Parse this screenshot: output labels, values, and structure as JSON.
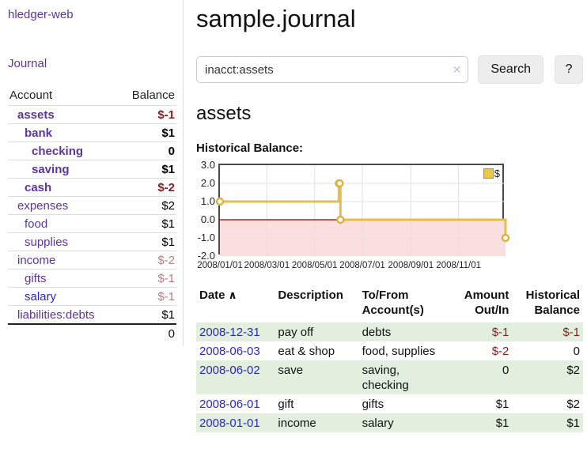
{
  "app": {
    "brand": "hledger-web",
    "nav_journal": "Journal"
  },
  "sidebar": {
    "columns": {
      "account": "Account",
      "balance": "Balance"
    },
    "accounts": [
      {
        "label": "assets",
        "indent": 1,
        "bold": true,
        "link": "purple",
        "balance": "$-1",
        "balance_neg": "strong"
      },
      {
        "label": "bank",
        "indent": 2,
        "bold": true,
        "link": "purple",
        "balance": "$1",
        "balance_neg": "none"
      },
      {
        "label": "checking",
        "indent": 3,
        "bold": true,
        "link": "purple",
        "balance": "0",
        "balance_neg": "none"
      },
      {
        "label": "saving",
        "indent": 3,
        "bold": true,
        "link": "purple",
        "balance": "$1",
        "balance_neg": "none"
      },
      {
        "label": "cash",
        "indent": 2,
        "bold": true,
        "link": "purple",
        "balance": "$-2",
        "balance_neg": "strong"
      },
      {
        "label": "expenses",
        "indent": 1,
        "bold": false,
        "link": "purple",
        "balance": "$2",
        "balance_neg": "none"
      },
      {
        "label": "food",
        "indent": 2,
        "bold": false,
        "link": "purple",
        "balance": "$1",
        "balance_neg": "none"
      },
      {
        "label": "supplies",
        "indent": 2,
        "bold": false,
        "link": "purple",
        "balance": "$1",
        "balance_neg": "none"
      },
      {
        "label": "income",
        "indent": 1,
        "bold": false,
        "link": "purple",
        "balance": "$-2",
        "balance_neg": "soft"
      },
      {
        "label": "gifts",
        "indent": 2,
        "bold": false,
        "link": "purple",
        "balance": "$-1",
        "balance_neg": "soft"
      },
      {
        "label": "salary",
        "indent": 2,
        "bold": false,
        "link": "blue",
        "balance": "$-1",
        "balance_neg": "soft"
      },
      {
        "label": "liabilities:debts",
        "indent": 1,
        "bold": false,
        "link": "purple",
        "balance": "$1",
        "balance_neg": "none"
      }
    ],
    "total": "0"
  },
  "main": {
    "title": "sample.journal",
    "search": {
      "value": "inacct:assets",
      "clear_icon": "✕",
      "button_label": "Search",
      "help_label": "?"
    },
    "account_heading": "assets"
  },
  "chart_data": {
    "type": "line",
    "step": true,
    "title": "Historical Balance:",
    "series": [
      {
        "name": "$",
        "x": [
          "2008-01-01",
          "2008-06-01",
          "2008-06-02",
          "2008-06-03",
          "2008-12-31"
        ],
        "values": [
          1,
          2,
          2,
          0,
          -1
        ]
      }
    ],
    "ylim": [
      -2,
      3
    ],
    "yticks": [
      "3.0",
      "2.0",
      "1.0",
      "0.0",
      "-1.0",
      "-2.0"
    ],
    "xticks": [
      "2008/01/01",
      "2008/03/01",
      "2008/05/01",
      "2008/07/01",
      "2008/09/01",
      "2008/11/01"
    ],
    "xrange": [
      "2008-01-01",
      "2008-12-31"
    ],
    "legend": {
      "label": "$",
      "position": "top-right"
    },
    "grid": true
  },
  "register": {
    "sort_icon": "∧",
    "columns": [
      {
        "label": "Date",
        "align": "left",
        "sortable": true
      },
      {
        "label": "Description",
        "align": "left"
      },
      {
        "label": "To/From Account(s)",
        "lines": [
          "To/From",
          "Account(s)"
        ],
        "align": "left"
      },
      {
        "label": "Amount Out/In",
        "lines": [
          "Amount",
          "Out/In"
        ],
        "align": "right"
      },
      {
        "label": "Historical Balance",
        "lines": [
          "Historical",
          "Balance"
        ],
        "align": "right"
      }
    ],
    "rows": [
      {
        "date": "2008-12-31",
        "description": "pay off",
        "accounts": "debts",
        "amount": "$-1",
        "amount_neg": true,
        "balance": "$-1",
        "balance_neg": true
      },
      {
        "date": "2008-06-03",
        "description": "eat & shop",
        "accounts": "food, supplies",
        "amount": "$-2",
        "amount_neg": true,
        "balance": "0",
        "balance_neg": false
      },
      {
        "date": "2008-06-02",
        "description": "save",
        "accounts": "saving,\nchecking",
        "amount": "0",
        "amount_neg": false,
        "balance": "$2",
        "balance_neg": false
      },
      {
        "date": "2008-06-01",
        "description": "gift",
        "accounts": "gifts",
        "amount": "$1",
        "amount_neg": false,
        "balance": "$2",
        "balance_neg": false
      },
      {
        "date": "2008-01-01",
        "description": "income",
        "accounts": "salary",
        "amount": "$1",
        "amount_neg": false,
        "balance": "$1",
        "balance_neg": false
      }
    ]
  },
  "colors": {
    "purple_link": "#5c35a0",
    "blue_link": "#2a28c8",
    "negative_strong": "#8b1c1c",
    "negative_soft": "#c47a7a",
    "row_green": "#e3efde",
    "chart_line": "#e4bd4e",
    "chart_marker_fill": "#fffdf2",
    "chart_negative_fill": "#fbdede",
    "chart_zero_line": "#8b0000",
    "chart_grid": "#e2e2e2"
  }
}
